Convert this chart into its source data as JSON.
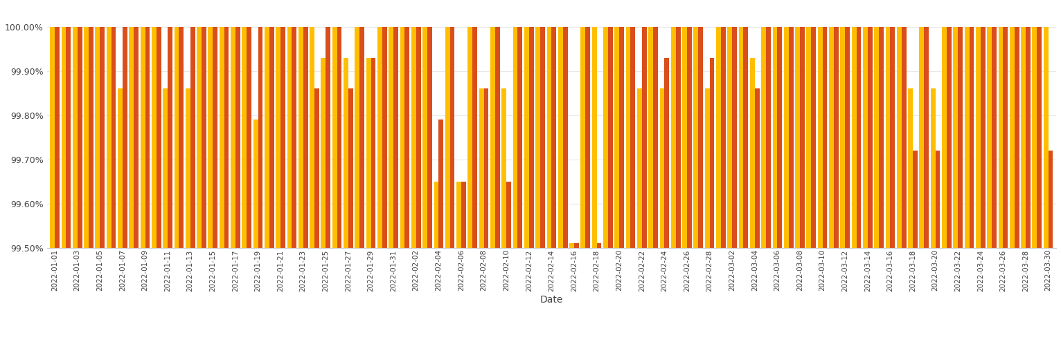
{
  "dates": [
    "2022-01-01",
    "2022-01-02",
    "2022-01-03",
    "2022-01-04",
    "2022-01-05",
    "2022-01-06",
    "2022-01-07",
    "2022-01-08",
    "2022-01-09",
    "2022-01-10",
    "2022-01-11",
    "2022-01-12",
    "2022-01-13",
    "2022-01-14",
    "2022-01-15",
    "2022-01-16",
    "2022-01-17",
    "2022-01-18",
    "2022-01-19",
    "2022-01-20",
    "2022-01-21",
    "2022-01-22",
    "2022-01-23",
    "2022-01-24",
    "2022-01-25",
    "2022-01-26",
    "2022-01-27",
    "2022-01-28",
    "2022-01-29",
    "2022-01-30",
    "2022-01-31",
    "2022-02-01",
    "2022-02-02",
    "2022-02-03",
    "2022-02-04",
    "2022-02-05",
    "2022-02-06",
    "2022-02-07",
    "2022-02-08",
    "2022-02-09",
    "2022-02-10",
    "2022-02-11",
    "2022-02-12",
    "2022-02-13",
    "2022-02-14",
    "2022-02-15",
    "2022-02-16",
    "2022-02-17",
    "2022-02-18",
    "2022-02-19",
    "2022-02-20",
    "2022-02-21",
    "2022-02-22",
    "2022-02-23",
    "2022-02-24",
    "2022-02-25",
    "2022-02-26",
    "2022-02-27",
    "2022-02-28",
    "2022-03-01",
    "2022-03-02",
    "2022-03-03",
    "2022-03-04",
    "2022-03-05",
    "2022-03-06",
    "2022-03-07",
    "2022-03-08",
    "2022-03-09",
    "2022-03-10",
    "2022-03-11",
    "2022-03-12",
    "2022-03-13",
    "2022-03-14",
    "2022-03-15",
    "2022-03-16",
    "2022-03-17",
    "2022-03-18",
    "2022-03-19",
    "2022-03-20",
    "2022-03-21",
    "2022-03-22",
    "2022-03-23",
    "2022-03-24",
    "2022-03-25",
    "2022-03-26",
    "2022-03-27",
    "2022-03-28",
    "2022-03-29",
    "2022-03-30"
  ],
  "monzo_app": [
    100.0,
    100.0,
    100.0,
    100.0,
    100.0,
    100.0,
    99.86,
    100.0,
    100.0,
    100.0,
    99.86,
    100.0,
    99.86,
    100.0,
    100.0,
    100.0,
    100.0,
    100.0,
    99.79,
    100.0,
    100.0,
    100.0,
    100.0,
    100.0,
    99.93,
    100.0,
    99.93,
    100.0,
    99.93,
    100.0,
    100.0,
    100.0,
    100.0,
    100.0,
    99.65,
    100.0,
    99.65,
    100.0,
    99.86,
    100.0,
    99.86,
    100.0,
    100.0,
    100.0,
    100.0,
    100.0,
    99.51,
    100.0,
    100.0,
    100.0,
    100.0,
    100.0,
    99.86,
    100.0,
    99.86,
    100.0,
    100.0,
    100.0,
    99.86,
    100.0,
    100.0,
    100.0,
    99.93,
    100.0,
    100.0,
    100.0,
    100.0,
    100.0,
    100.0,
    100.0,
    100.0,
    100.0,
    100.0,
    100.0,
    100.0,
    100.0,
    99.86,
    100.0,
    99.86,
    100.0,
    100.0,
    100.0,
    100.0,
    100.0,
    100.0,
    100.0,
    100.0,
    100.0,
    100.0
  ],
  "open_banking": [
    100.0,
    100.0,
    100.0,
    100.0,
    100.0,
    100.0,
    100.0,
    100.0,
    100.0,
    100.0,
    100.0,
    100.0,
    100.0,
    100.0,
    100.0,
    100.0,
    100.0,
    100.0,
    100.0,
    100.0,
    100.0,
    100.0,
    100.0,
    99.86,
    100.0,
    100.0,
    99.86,
    100.0,
    99.93,
    100.0,
    100.0,
    100.0,
    100.0,
    100.0,
    99.79,
    100.0,
    99.65,
    100.0,
    99.86,
    100.0,
    99.65,
    100.0,
    100.0,
    100.0,
    100.0,
    100.0,
    99.51,
    100.0,
    99.51,
    100.0,
    100.0,
    100.0,
    100.0,
    100.0,
    99.93,
    100.0,
    100.0,
    100.0,
    99.93,
    100.0,
    100.0,
    100.0,
    99.86,
    100.0,
    100.0,
    100.0,
    100.0,
    100.0,
    100.0,
    100.0,
    100.0,
    100.0,
    100.0,
    100.0,
    100.0,
    100.0,
    99.72,
    100.0,
    99.72,
    100.0,
    100.0,
    100.0,
    100.0,
    100.0,
    100.0,
    100.0,
    100.0,
    100.0,
    99.72
  ],
  "monzo_color": "#FFBF00",
  "openbanking_color": "#D94E1A",
  "xlabel": "Date",
  "ylim_min": 99.5,
  "ylim_max": 100.05,
  "background_color": "#ffffff",
  "grid_color": "#e8e8e8",
  "tick_label_dates": [
    "2022-01-01",
    "2022-01-03",
    "2022-01-05",
    "2022-01-07",
    "2022-01-09",
    "2022-01-11",
    "2022-01-13",
    "2022-01-15",
    "2022-01-17",
    "2022-01-19",
    "2022-01-21",
    "2022-01-23",
    "2022-01-25",
    "2022-01-27",
    "2022-01-29",
    "2022-01-31",
    "2022-02-02",
    "2022-02-04",
    "2022-02-06",
    "2022-02-08",
    "2022-02-10",
    "2022-02-12",
    "2022-02-14",
    "2022-02-16",
    "2022-02-18",
    "2022-02-20",
    "2022-02-22",
    "2022-02-24",
    "2022-02-26",
    "2022-02-28",
    "2022-03-02",
    "2022-03-04",
    "2022-03-06",
    "2022-03-08",
    "2022-03-10",
    "2022-03-12",
    "2022-03-14",
    "2022-03-16",
    "2022-03-18",
    "2022-03-20",
    "2022-03-22",
    "2022-03-24",
    "2022-03-26",
    "2022-03-28",
    "2022-03-30"
  ]
}
